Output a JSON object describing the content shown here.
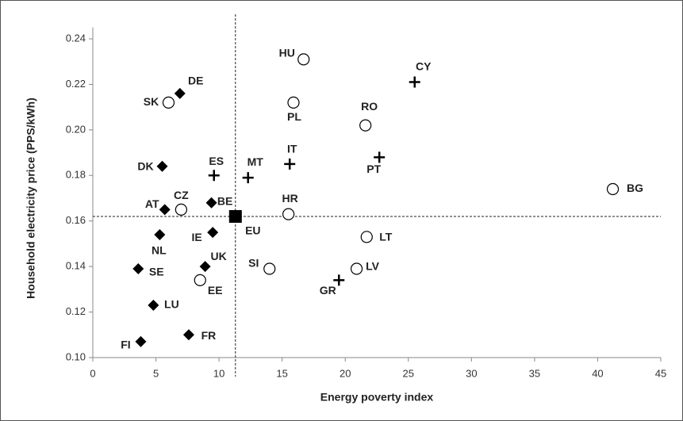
{
  "chart_data": {
    "type": "scatter",
    "x_label": "Energy poverty index",
    "y_label": "Household electricity price (PPS/kWh)",
    "xlim": [
      0,
      45
    ],
    "xticks": [
      0,
      5,
      10,
      15,
      20,
      25,
      30,
      35,
      40,
      45
    ],
    "ylim": [
      0.1,
      0.245
    ],
    "yticks": [
      {
        "value": 0.1,
        "label": "0.10"
      },
      0.12,
      0.14,
      0.16,
      0.18,
      {
        "value": 0.2,
        "label": "0.20"
      },
      0.22,
      0.24
    ],
    "color": "#000000",
    "points": [
      {
        "label": "DE",
        "x": 6.9,
        "y": 0.216,
        "marker": "diamond"
      },
      {
        "label": "DK",
        "x": 5.5,
        "y": 0.184,
        "marker": "diamond"
      },
      {
        "label": "AT",
        "x": 5.7,
        "y": 0.165,
        "marker": "diamond"
      },
      {
        "label": "BE",
        "x": 9.4,
        "y": 0.168,
        "marker": "diamond"
      },
      {
        "label": "NL",
        "x": 5.3,
        "y": 0.154,
        "marker": "diamond"
      },
      {
        "label": "IE",
        "x": 9.5,
        "y": 0.155,
        "marker": "diamond"
      },
      {
        "label": "UK",
        "x": 8.9,
        "y": 0.14,
        "marker": "diamond"
      },
      {
        "label": "SE",
        "x": 3.6,
        "y": 0.139,
        "marker": "diamond"
      },
      {
        "label": "LU",
        "x": 4.8,
        "y": 0.123,
        "marker": "diamond"
      },
      {
        "label": "FR",
        "x": 7.6,
        "y": 0.11,
        "marker": "diamond"
      },
      {
        "label": "FI",
        "x": 3.8,
        "y": 0.107,
        "marker": "diamond"
      },
      {
        "label": "SK",
        "x": 6.0,
        "y": 0.212,
        "marker": "circle"
      },
      {
        "label": "HU",
        "x": 16.7,
        "y": 0.231,
        "marker": "circle"
      },
      {
        "label": "PL",
        "x": 15.9,
        "y": 0.212,
        "marker": "circle"
      },
      {
        "label": "RO",
        "x": 21.6,
        "y": 0.202,
        "marker": "circle"
      },
      {
        "label": "CZ",
        "x": 7.0,
        "y": 0.165,
        "marker": "circle"
      },
      {
        "label": "HR",
        "x": 15.5,
        "y": 0.163,
        "marker": "circle"
      },
      {
        "label": "BG",
        "x": 41.2,
        "y": 0.174,
        "marker": "circle"
      },
      {
        "label": "LT",
        "x": 21.7,
        "y": 0.153,
        "marker": "circle"
      },
      {
        "label": "SI",
        "x": 14.0,
        "y": 0.139,
        "marker": "circle"
      },
      {
        "label": "LV",
        "x": 20.9,
        "y": 0.139,
        "marker": "circle"
      },
      {
        "label": "EE",
        "x": 8.5,
        "y": 0.134,
        "marker": "circle"
      },
      {
        "label": "CY",
        "x": 25.5,
        "y": 0.221,
        "marker": "plus"
      },
      {
        "label": "PT",
        "x": 22.7,
        "y": 0.188,
        "marker": "plus"
      },
      {
        "label": "IT",
        "x": 15.6,
        "y": 0.185,
        "marker": "plus"
      },
      {
        "label": "ES",
        "x": 9.6,
        "y": 0.18,
        "marker": "plus"
      },
      {
        "label": "MT",
        "x": 12.3,
        "y": 0.179,
        "marker": "plus"
      },
      {
        "label": "GR",
        "x": 19.5,
        "y": 0.134,
        "marker": "plus"
      },
      {
        "label": "EU",
        "x": 11.3,
        "y": 0.162,
        "marker": "square"
      }
    ]
  }
}
